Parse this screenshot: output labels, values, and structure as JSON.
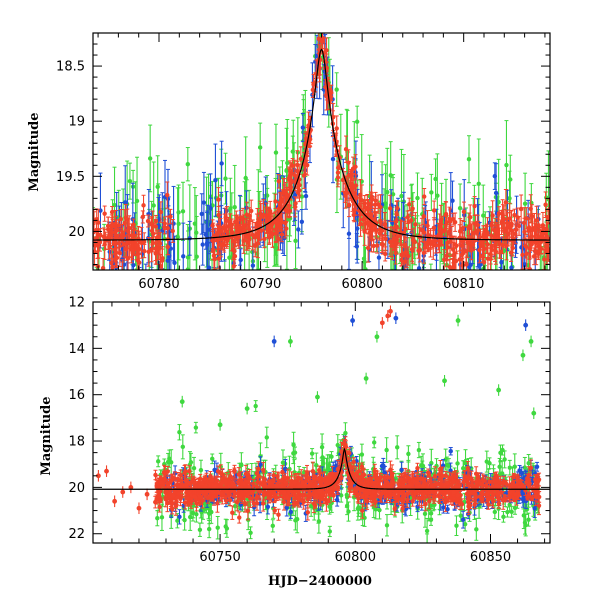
{
  "chart_data": [
    {
      "id": "top",
      "type": "scatter",
      "title": "",
      "xlabel": "",
      "ylabel": "Magnitude",
      "xlim": [
        60773.5,
        60818.5
      ],
      "ylim": [
        20.35,
        18.2
      ],
      "y_inverted": true,
      "xticks_major": [
        60780,
        60790,
        60800,
        60810
      ],
      "xticks_minor_step": 2,
      "yticks_major": [
        18.5,
        19,
        19.5,
        20
      ],
      "ytick_labels": [
        "18.5",
        "19",
        "19.5",
        "20"
      ],
      "yticks_minor_step": 0.1,
      "grid": false,
      "legend": "none",
      "model_curve": {
        "color": "#000000",
        "peak_x": 60796.0,
        "peak_mag": 18.35,
        "base_mag": 20.08,
        "tau": 4.2,
        "u0": 0.12
      },
      "series": [
        {
          "color": "#f2432b",
          "x_range": [
            60773.5,
            60818.5
          ],
          "n_points": 720,
          "scatter_mag": 0.12,
          "mag_err": [
            0.05,
            0.14
          ],
          "gaps": [
            [
              60781.5,
              60785.0
            ]
          ]
        },
        {
          "color": "#1f4fd6",
          "x_range": [
            60774.0,
            60817.5
          ],
          "n_points": 180,
          "scatter_mag": 0.22,
          "mag_err": [
            0.1,
            0.35
          ],
          "gaps": []
        },
        {
          "color": "#3fd83f",
          "x_range": [
            60773.5,
            60818.5
          ],
          "n_points": 230,
          "scatter_mag": 0.3,
          "mag_err": [
            0.12,
            0.45
          ],
          "gaps": []
        }
      ]
    },
    {
      "id": "bottom",
      "type": "scatter",
      "title": "",
      "xlabel": "HJD−2400000",
      "ylabel": "Magnitude",
      "xlim": [
        60703,
        60872
      ],
      "ylim": [
        22.4,
        12.0
      ],
      "y_inverted": true,
      "xticks_major": [
        60750,
        60800,
        60850
      ],
      "xticks_minor_step": 10,
      "yticks_major": [
        12,
        14,
        16,
        18,
        20,
        22
      ],
      "ytick_labels": [
        "12",
        "14",
        "16",
        "18",
        "20",
        "22"
      ],
      "yticks_minor_step": 0.5,
      "grid": false,
      "legend": "none",
      "model_curve": {
        "color": "#000000",
        "peak_x": 60796.0,
        "peak_mag": 18.35,
        "base_mag": 20.08,
        "tau": 4.2,
        "u0": 0.12
      },
      "series": [
        {
          "color": "#f2432b",
          "x_range": [
            60726,
            60868
          ],
          "n_points": 900,
          "scatter_mag": 0.35,
          "mag_err": [
            0.1,
            0.4
          ],
          "gaps": [],
          "sparse_early": [
            [
              60705,
              19.5
            ],
            [
              60708,
              19.3
            ],
            [
              60711,
              20.6
            ],
            [
              60714,
              20.2
            ],
            [
              60717,
              20.0
            ],
            [
              60720,
              20.9
            ],
            [
              60723,
              20.3
            ]
          ],
          "bright_outliers": [
            [
              60812,
              12.6
            ],
            [
              60810,
              12.9
            ],
            [
              60813,
              12.4
            ]
          ]
        },
        {
          "color": "#1f4fd6",
          "x_range": [
            60730,
            60868
          ],
          "n_points": 320,
          "scatter_mag": 0.45,
          "mag_err": [
            0.15,
            0.4
          ],
          "gaps": [],
          "bright_outliers": [
            [
              60770,
              13.7
            ],
            [
              60799,
              12.8
            ],
            [
              60815,
              12.7
            ],
            [
              60863,
              13.0
            ]
          ]
        },
        {
          "color": "#3fd83f",
          "x_range": [
            60726,
            60868
          ],
          "n_points": 420,
          "scatter_mag": 0.9,
          "mag_err": [
            0.2,
            0.6
          ],
          "gaps": [],
          "bright_outliers": [
            [
              60736,
              16.3
            ],
            [
              60750,
              17.3
            ],
            [
              60760,
              16.6
            ],
            [
              60776,
              13.7
            ],
            [
              60786,
              16.1
            ],
            [
              60804,
              15.3
            ],
            [
              60808,
              13.5
            ],
            [
              60833,
              15.4
            ],
            [
              60838,
              12.8
            ],
            [
              60853,
              15.8
            ],
            [
              60862,
              14.3
            ],
            [
              60865,
              13.7
            ],
            [
              60866,
              16.8
            ]
          ]
        }
      ]
    }
  ]
}
